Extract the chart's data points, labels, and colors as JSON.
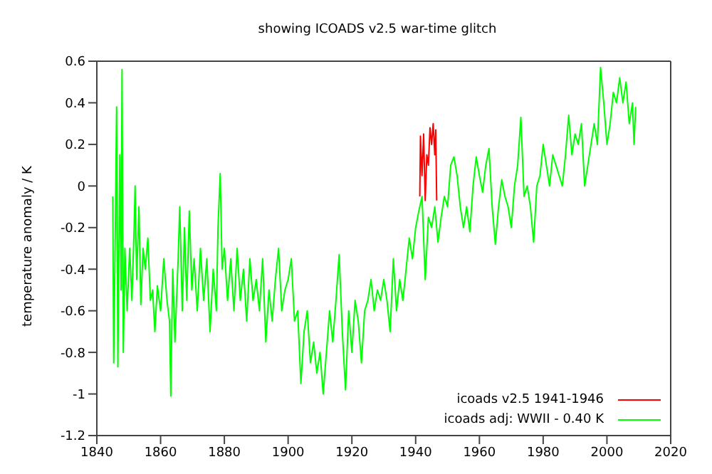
{
  "chart_data": {
    "type": "line",
    "title": "showing ICOADS v2.5 war-time glitch",
    "ylabel": "temperature anomaly / K",
    "xlim": [
      1840,
      2020
    ],
    "xticks": [
      1840,
      1860,
      1880,
      1900,
      1920,
      1940,
      1960,
      1980,
      2000,
      2020
    ],
    "ylim": [
      -1.2,
      0.6
    ],
    "yticks": [
      -1.2,
      -1,
      -0.8,
      -0.6,
      -0.4,
      -0.2,
      0,
      0.2,
      0.4,
      0.6
    ],
    "grid": false,
    "legend": "bottom right",
    "marker": "none",
    "line_style": "solid",
    "series": [
      {
        "name": "icoads v2.5 1941-1946",
        "color": "#ff0000",
        "x": [
          1941.3,
          1941.5,
          1942,
          1942.5,
          1943,
          1943.5,
          1944,
          1944.5,
          1945,
          1945.5,
          1946,
          1946.3,
          1946.6
        ],
        "values": [
          -0.05,
          0.24,
          0.05,
          0.25,
          -0.07,
          0.15,
          0.1,
          0.28,
          0.2,
          0.3,
          0.15,
          0.27,
          -0.07
        ]
      },
      {
        "name": "icoads adj: WWII - 0.40 K",
        "color": "#00ff00",
        "x": [
          1845,
          1845.3,
          1845.8,
          1846.2,
          1846.6,
          1847.2,
          1847.6,
          1847.9,
          1848.3,
          1848.8,
          1849.5,
          1850.3,
          1851,
          1851.7,
          1852,
          1852.5,
          1853.2,
          1853.8,
          1854.5,
          1855.2,
          1856,
          1856.8,
          1857.5,
          1858.2,
          1859,
          1860,
          1861,
          1862,
          1862.8,
          1863.2,
          1863.8,
          1864.5,
          1865.5,
          1866,
          1866.8,
          1867.5,
          1868.2,
          1869,
          1869.8,
          1870.5,
          1871.5,
          1872.5,
          1873.5,
          1874.5,
          1875.5,
          1876.5,
          1877.5,
          1878,
          1878.7,
          1879.3,
          1880,
          1881,
          1882,
          1883,
          1884,
          1885,
          1886,
          1887,
          1888,
          1889,
          1890,
          1891,
          1892,
          1893,
          1894,
          1895,
          1896,
          1897,
          1898,
          1899,
          1900,
          1901,
          1902,
          1903,
          1904,
          1905,
          1906,
          1907,
          1908,
          1909,
          1910,
          1911,
          1912,
          1913,
          1914,
          1915,
          1916,
          1917,
          1918,
          1919,
          1920,
          1921,
          1922,
          1923,
          1924,
          1925,
          1926,
          1927,
          1928,
          1929,
          1930,
          1931,
          1932,
          1933,
          1934,
          1935,
          1936,
          1937,
          1938,
          1939,
          1940,
          1941,
          1942,
          1943,
          1944,
          1945,
          1946,
          1947,
          1948,
          1949,
          1950,
          1951,
          1952,
          1953,
          1954,
          1955,
          1956,
          1957,
          1958,
          1959,
          1960,
          1961,
          1962,
          1963,
          1964,
          1965,
          1966,
          1967,
          1968,
          1969,
          1970,
          1971,
          1972,
          1973,
          1974,
          1975,
          1976,
          1977,
          1978,
          1979,
          1980,
          1981,
          1982,
          1983,
          1984,
          1985,
          1986,
          1987,
          1988,
          1989,
          1990,
          1991,
          1992,
          1993,
          1994,
          1995,
          1996,
          1997,
          1998,
          1999,
          2000,
          2001,
          2002,
          2003,
          2004,
          2005,
          2006,
          2007,
          2008,
          2008.5,
          2009
        ],
        "values": [
          -0.05,
          -0.85,
          -0.2,
          0.38,
          -0.87,
          0.15,
          -0.5,
          0.56,
          -0.8,
          -0.3,
          -0.6,
          -0.3,
          -0.55,
          -0.2,
          0.0,
          -0.45,
          -0.1,
          -0.57,
          -0.3,
          -0.4,
          -0.25,
          -0.55,
          -0.5,
          -0.7,
          -0.48,
          -0.6,
          -0.35,
          -0.55,
          -0.65,
          -1.01,
          -0.4,
          -0.75,
          -0.35,
          -0.1,
          -0.6,
          -0.2,
          -0.55,
          -0.12,
          -0.5,
          -0.35,
          -0.6,
          -0.3,
          -0.55,
          -0.35,
          -0.7,
          -0.4,
          -0.6,
          -0.2,
          0.06,
          -0.4,
          -0.3,
          -0.55,
          -0.35,
          -0.6,
          -0.3,
          -0.55,
          -0.4,
          -0.65,
          -0.35,
          -0.55,
          -0.45,
          -0.6,
          -0.35,
          -0.75,
          -0.5,
          -0.65,
          -0.45,
          -0.3,
          -0.6,
          -0.5,
          -0.45,
          -0.35,
          -0.65,
          -0.6,
          -0.95,
          -0.7,
          -0.6,
          -0.85,
          -0.75,
          -0.9,
          -0.8,
          -1.0,
          -0.8,
          -0.6,
          -0.75,
          -0.55,
          -0.33,
          -0.7,
          -0.98,
          -0.6,
          -0.8,
          -0.55,
          -0.65,
          -0.85,
          -0.6,
          -0.55,
          -0.45,
          -0.6,
          -0.5,
          -0.55,
          -0.45,
          -0.55,
          -0.7,
          -0.35,
          -0.6,
          -0.45,
          -0.55,
          -0.4,
          -0.25,
          -0.35,
          -0.2,
          -0.12,
          -0.05,
          -0.45,
          -0.15,
          -0.2,
          -0.1,
          -0.27,
          -0.15,
          -0.05,
          -0.1,
          0.1,
          0.14,
          0.05,
          -0.1,
          -0.2,
          -0.1,
          -0.22,
          0.0,
          0.14,
          0.05,
          -0.03,
          0.1,
          0.18,
          -0.1,
          -0.28,
          -0.1,
          0.03,
          -0.05,
          -0.1,
          -0.2,
          0.0,
          0.1,
          0.33,
          -0.05,
          0.0,
          -0.1,
          -0.27,
          0.0,
          0.05,
          0.2,
          0.1,
          0.0,
          0.15,
          0.1,
          0.05,
          0.0,
          0.15,
          0.34,
          0.15,
          0.25,
          0.2,
          0.3,
          0.0,
          0.1,
          0.2,
          0.3,
          0.2,
          0.57,
          0.4,
          0.2,
          0.3,
          0.45,
          0.4,
          0.52,
          0.4,
          0.5,
          0.3,
          0.4,
          0.2,
          0.38
        ]
      }
    ]
  }
}
